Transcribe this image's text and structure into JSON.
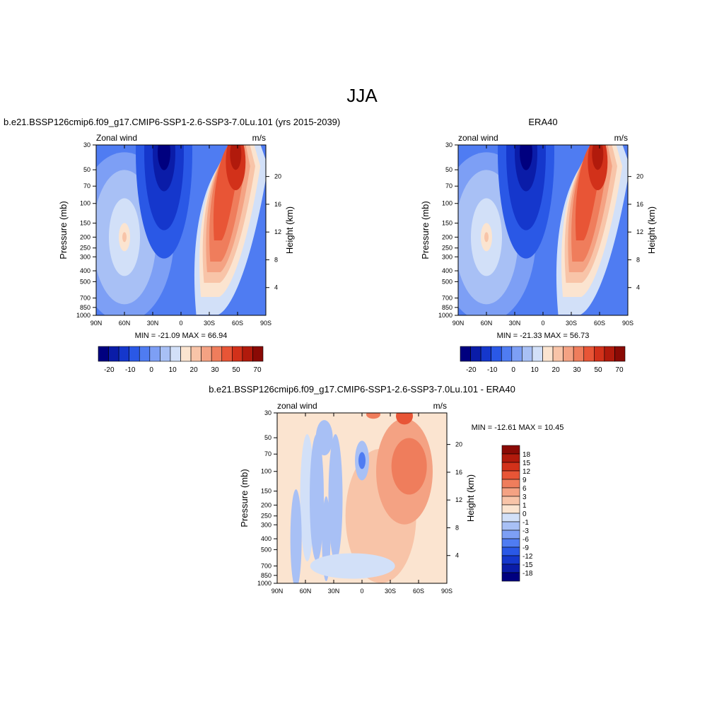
{
  "title": "JJA",
  "stat_prefix": {
    "min": "MIN = ",
    "max": "MAX = "
  },
  "colors": {
    "main": [
      "#00007f",
      "#0a1ca8",
      "#1537cc",
      "#2a58e6",
      "#4f7cf2",
      "#7d9ff5",
      "#a8c0f5",
      "#d2e0f8",
      "#fbe4d0",
      "#f8c4a8",
      "#f4a283",
      "#ef7d5c",
      "#e85536",
      "#d2311a",
      "#b11a0c",
      "#8a0a05"
    ],
    "diff": [
      "#00007f",
      "#0a1ca8",
      "#1537cc",
      "#2a58e6",
      "#4f7cf2",
      "#7d9ff5",
      "#a8c0f5",
      "#d2e0f8",
      "#fbe4d0",
      "#f8c4a8",
      "#f4a283",
      "#ef7d5c",
      "#e85536",
      "#d2311a",
      "#b11a0c",
      "#8a0a05"
    ]
  },
  "chart_data": [
    {
      "type": "heatmap",
      "title": "b.e21.BSSP126cmip6.f09_g17.CMIP6-SSP1-2.6-SSP3-7.0Lu.101 (yrs 2015-2039)",
      "left_label": "Zonal wind",
      "right_label": "m/s",
      "xlabel": "",
      "ylabel": "Pressure (mb)",
      "y2label": "Height (km)",
      "xticks": [
        "90N",
        "60N",
        "30N",
        "0",
        "30S",
        "60S",
        "90S"
      ],
      "yticks": [
        "30",
        "50",
        "70",
        "100",
        "150",
        "200",
        "250",
        "300",
        "400",
        "500",
        "700",
        "850",
        "1000"
      ],
      "y2ticks": [
        "20",
        "16",
        "12",
        "8",
        "4"
      ],
      "min": "-21.09",
      "max": "66.94",
      "colorbar_labels": [
        "-20",
        "-10",
        "0",
        "10",
        "20",
        "30",
        "50",
        "70"
      ],
      "features": [
        {
          "lat": 60,
          "p": 200,
          "value": 20
        },
        {
          "lat": 20,
          "p": 30,
          "value": -21.09
        },
        {
          "lat": -45,
          "p": 200,
          "value": 45
        },
        {
          "lat": -58,
          "p": 40,
          "value": 66.94
        }
      ]
    },
    {
      "type": "heatmap",
      "title": "ERA40",
      "left_label": "zonal wind",
      "right_label": "m/s",
      "xlabel": "",
      "ylabel": "Pressure (mb)",
      "y2label": "Height (km)",
      "xticks": [
        "90N",
        "60N",
        "30N",
        "0",
        "30S",
        "60S",
        "90S"
      ],
      "yticks": [
        "30",
        "50",
        "70",
        "100",
        "150",
        "200",
        "250",
        "300",
        "400",
        "500",
        "700",
        "850",
        "1000"
      ],
      "y2ticks": [
        "20",
        "16",
        "12",
        "8",
        "4"
      ],
      "min": "-21.33",
      "max": "56.73",
      "colorbar_labels": [
        "-20",
        "-10",
        "0",
        "10",
        "20",
        "30",
        "50",
        "70"
      ],
      "features": [
        {
          "lat": 60,
          "p": 200,
          "value": 20
        },
        {
          "lat": 20,
          "p": 40,
          "value": -21.33
        },
        {
          "lat": -45,
          "p": 200,
          "value": 45
        },
        {
          "lat": -58,
          "p": 40,
          "value": 56.73
        }
      ]
    },
    {
      "type": "heatmap",
      "title": "b.e21.BSSP126cmip6.f09_g17.CMIP6-SSP1-2.6-SSP3-7.0Lu.101 - ERA40",
      "left_label": "zonal wind",
      "right_label": "m/s",
      "xlabel": "",
      "ylabel": "Pressure (mb)",
      "y2label": "Height (km)",
      "xticks": [
        "90N",
        "60N",
        "30N",
        "0",
        "30S",
        "60S",
        "90S"
      ],
      "yticks": [
        "30",
        "50",
        "70",
        "100",
        "150",
        "200",
        "250",
        "300",
        "400",
        "500",
        "700",
        "850",
        "1000"
      ],
      "y2ticks": [
        "20",
        "16",
        "12",
        "8",
        "4"
      ],
      "min": "-12.61",
      "max": "10.45",
      "colorbar_labels": [
        "18",
        "15",
        "12",
        "9",
        "6",
        "3",
        "1",
        "0",
        "-1",
        "-3",
        "-6",
        "-9",
        "-12",
        "-15",
        "-18"
      ],
      "features": [
        {
          "lat": 0,
          "p": 80,
          "value": -12.61
        },
        {
          "lat": -50,
          "p": 100,
          "value": 10.45
        }
      ]
    }
  ]
}
